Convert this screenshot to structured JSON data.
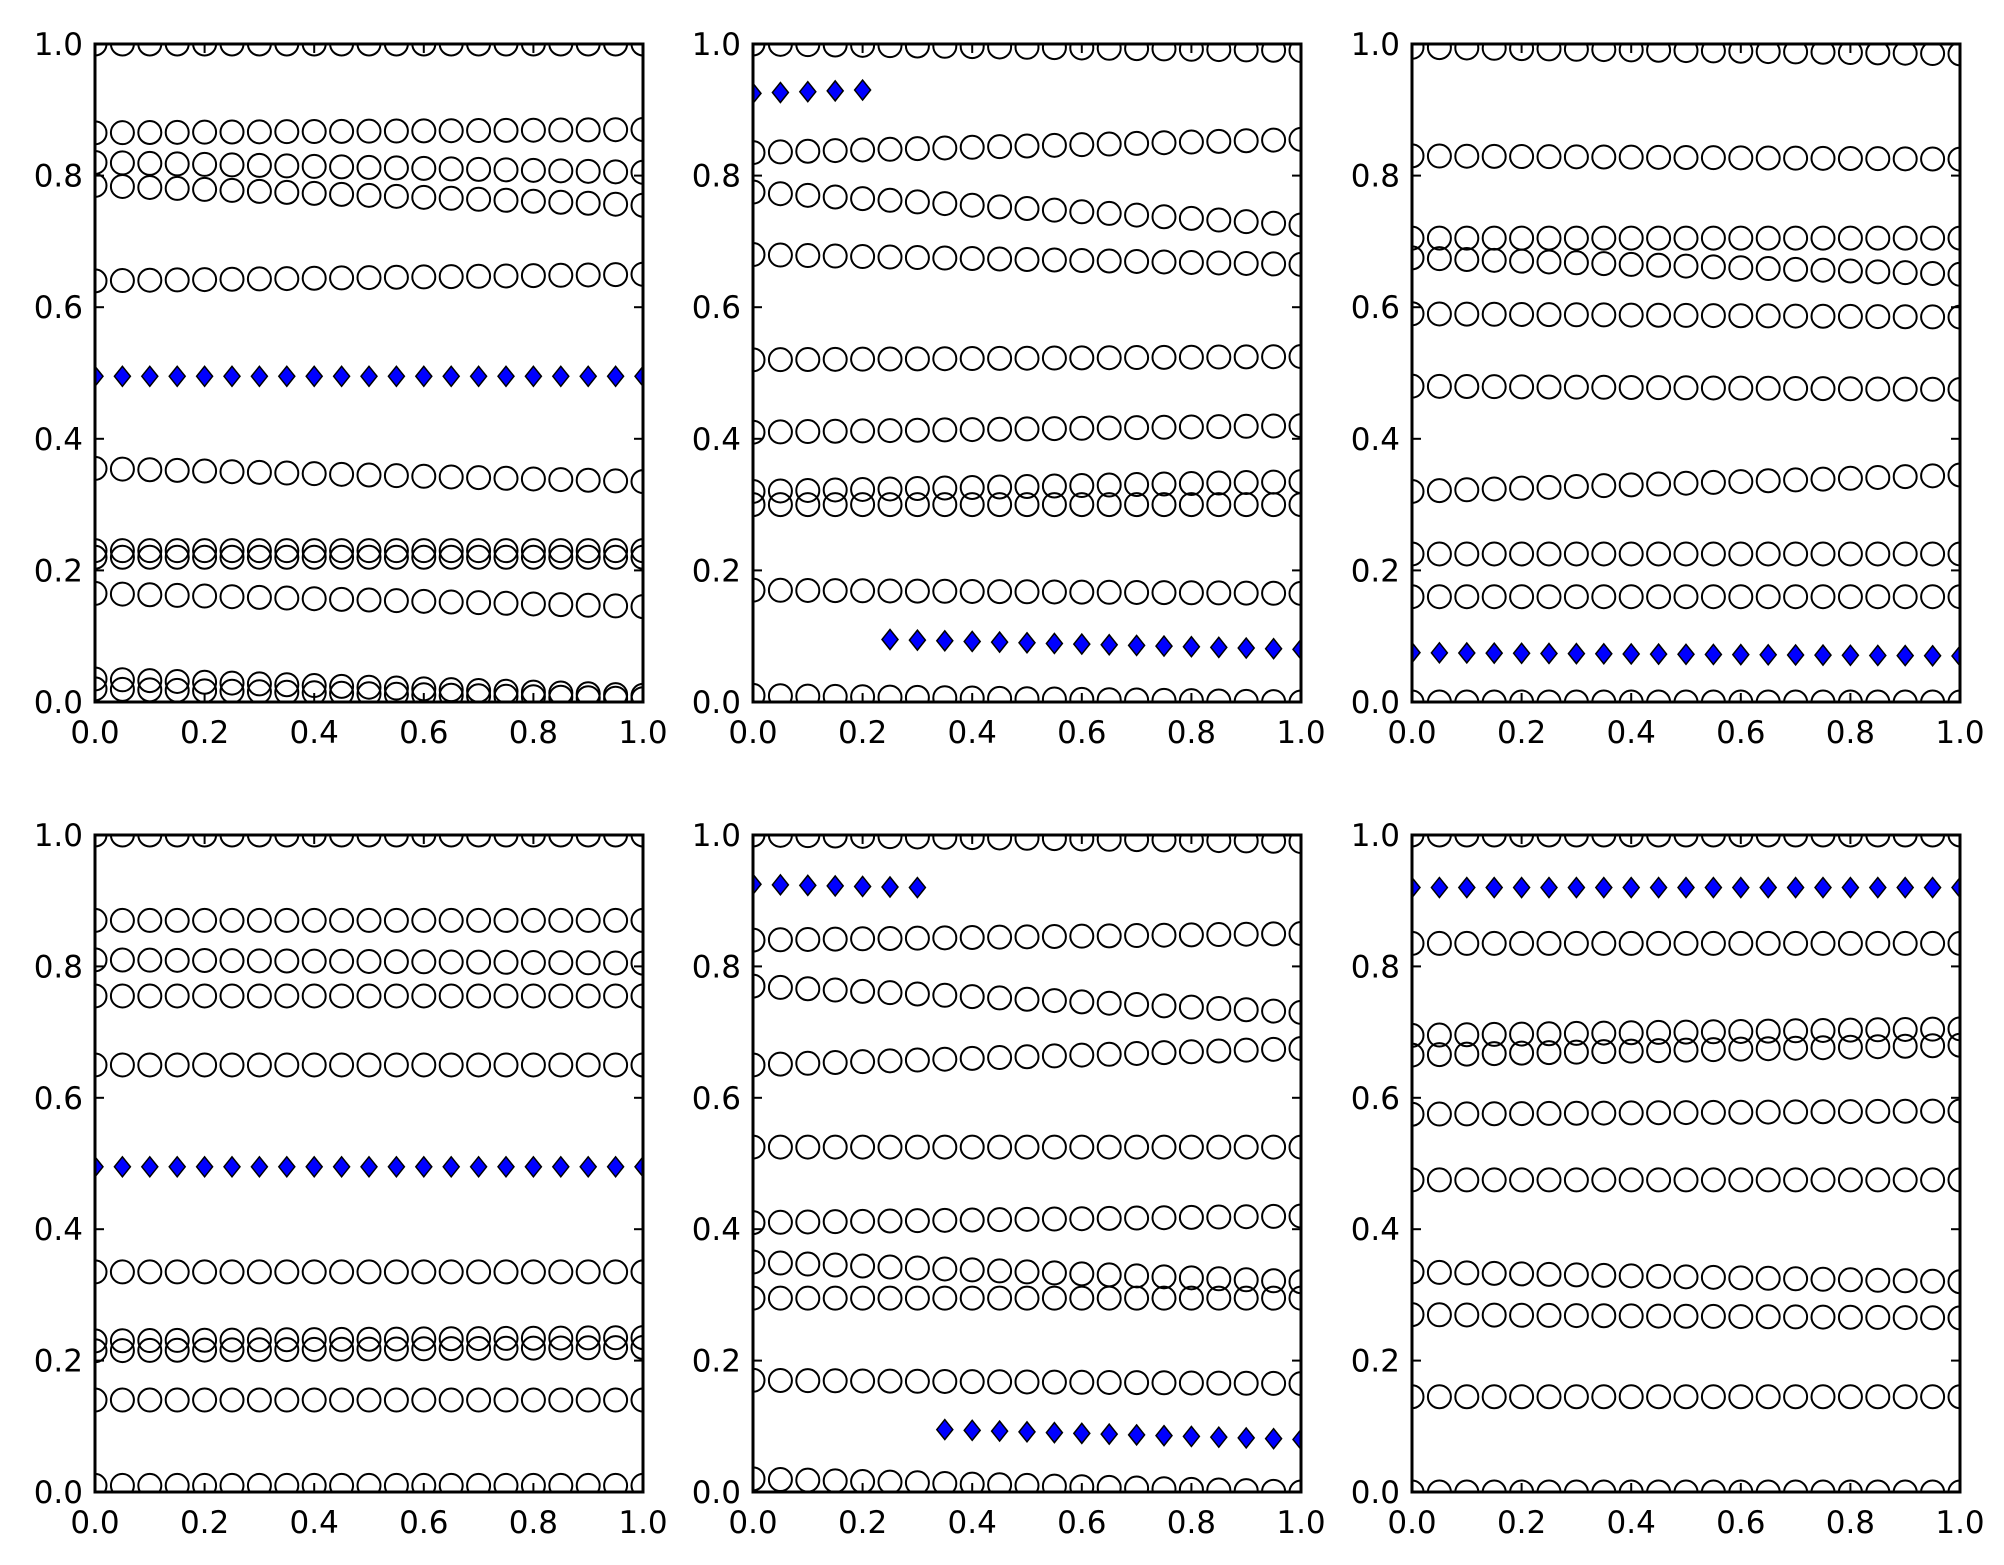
{
  "figure": {
    "grid": "2x3",
    "diamond_color": "#0000ff",
    "circle_edge_color": "#000000",
    "marker_styles": {
      "circles": "open circle",
      "highlighted": "filled blue diamond"
    }
  },
  "chart_data": [
    {
      "type": "scatter",
      "title": "",
      "xlabel": "",
      "ylabel": "",
      "xlim": [
        0,
        1
      ],
      "ylim": [
        0,
        1
      ],
      "x_ticks": [
        "0.0",
        "0.2",
        "0.4",
        "0.6",
        "0.8",
        "1.0"
      ],
      "y_ticks": [
        "0.0",
        "0.2",
        "0.4",
        "0.6",
        "0.8",
        "1.0"
      ],
      "grid": false,
      "x_values": [
        0.0,
        0.05,
        0.1,
        0.15,
        0.2,
        0.25,
        0.3,
        0.35,
        0.4,
        0.45,
        0.5,
        0.55,
        0.6,
        0.65,
        0.7,
        0.75,
        0.8,
        0.85,
        0.9,
        0.95,
        1.0
      ],
      "circle_tracks": [
        {
          "start": 1.0,
          "end": 1.0
        },
        {
          "start": 0.865,
          "end": 0.87
        },
        {
          "start": 0.82,
          "end": 0.805
        },
        {
          "start": 0.785,
          "end": 0.755
        },
        {
          "start": 0.64,
          "end": 0.65
        },
        {
          "start": 0.355,
          "end": 0.335
        },
        {
          "start": 0.23,
          "end": 0.23
        },
        {
          "start": 0.22,
          "end": 0.22
        },
        {
          "start": 0.165,
          "end": 0.145
        },
        {
          "start": 0.035,
          "end": 0.01
        },
        {
          "start": 0.02,
          "end": 0.005
        }
      ],
      "diamond_series": {
        "x_from": 0.0,
        "x_to": 1.0,
        "y_start": 0.495,
        "y_end": 0.495
      }
    },
    {
      "type": "scatter",
      "title": "",
      "xlabel": "",
      "ylabel": "",
      "xlim": [
        0,
        1
      ],
      "ylim": [
        0,
        1
      ],
      "x_ticks": [
        "0.0",
        "0.2",
        "0.4",
        "0.6",
        "0.8",
        "1.0"
      ],
      "y_ticks": [
        "0.0",
        "0.2",
        "0.4",
        "0.6",
        "0.8",
        "1.0"
      ],
      "grid": false,
      "x_values": [
        0.0,
        0.05,
        0.1,
        0.15,
        0.2,
        0.25,
        0.3,
        0.35,
        0.4,
        0.45,
        0.5,
        0.55,
        0.6,
        0.65,
        0.7,
        0.75,
        0.8,
        0.85,
        0.9,
        0.95,
        1.0
      ],
      "circle_tracks": [
        {
          "start": 1.0,
          "end": 0.99
        },
        {
          "start": 0.835,
          "end": 0.855
        },
        {
          "start": 0.775,
          "end": 0.725
        },
        {
          "start": 0.68,
          "end": 0.665
        },
        {
          "start": 0.52,
          "end": 0.525
        },
        {
          "start": 0.41,
          "end": 0.42
        },
        {
          "start": 0.32,
          "end": 0.335
        },
        {
          "start": 0.3,
          "end": 0.3
        },
        {
          "start": 0.17,
          "end": 0.165
        },
        {
          "start": 0.01,
          "end": 0.0
        }
      ],
      "diamond_series": [
        {
          "x_from": 0.0,
          "x_to": 0.2,
          "y_start": 0.925,
          "y_end": 0.93
        },
        {
          "x_from": 0.25,
          "x_to": 1.0,
          "y_start": 0.095,
          "y_end": 0.08
        }
      ]
    },
    {
      "type": "scatter",
      "title": "",
      "xlabel": "",
      "ylabel": "",
      "xlim": [
        0,
        1
      ],
      "ylim": [
        0,
        1
      ],
      "x_ticks": [
        "0.0",
        "0.2",
        "0.4",
        "0.6",
        "0.8",
        "1.0"
      ],
      "y_ticks": [
        "0.0",
        "0.2",
        "0.4",
        "0.6",
        "0.8",
        "1.0"
      ],
      "grid": false,
      "x_values": [
        0.0,
        0.05,
        0.1,
        0.15,
        0.2,
        0.25,
        0.3,
        0.35,
        0.4,
        0.45,
        0.5,
        0.55,
        0.6,
        0.65,
        0.7,
        0.75,
        0.8,
        0.85,
        0.9,
        0.95,
        1.0
      ],
      "circle_tracks": [
        {
          "start": 0.995,
          "end": 0.985
        },
        {
          "start": 0.83,
          "end": 0.825
        },
        {
          "start": 0.705,
          "end": 0.705
        },
        {
          "start": 0.675,
          "end": 0.65
        },
        {
          "start": 0.59,
          "end": 0.585
        },
        {
          "start": 0.48,
          "end": 0.475
        },
        {
          "start": 0.32,
          "end": 0.345
        },
        {
          "start": 0.225,
          "end": 0.225
        },
        {
          "start": 0.16,
          "end": 0.16
        },
        {
          "start": 0.0,
          "end": 0.0
        }
      ],
      "diamond_series": {
        "x_from": 0.0,
        "x_to": 1.0,
        "y_start": 0.075,
        "y_end": 0.07
      }
    },
    {
      "type": "scatter",
      "title": "",
      "xlabel": "",
      "ylabel": "",
      "xlim": [
        0,
        1
      ],
      "ylim": [
        0,
        1
      ],
      "x_ticks": [
        "0.0",
        "0.2",
        "0.4",
        "0.6",
        "0.8",
        "1.0"
      ],
      "y_ticks": [
        "0.0",
        "0.2",
        "0.4",
        "0.6",
        "0.8",
        "1.0"
      ],
      "grid": false,
      "x_values": [
        0.0,
        0.05,
        0.1,
        0.15,
        0.2,
        0.25,
        0.3,
        0.35,
        0.4,
        0.45,
        0.5,
        0.55,
        0.6,
        0.65,
        0.7,
        0.75,
        0.8,
        0.85,
        0.9,
        0.95,
        1.0
      ],
      "circle_tracks": [
        {
          "start": 1.0,
          "end": 1.0
        },
        {
          "start": 0.87,
          "end": 0.87
        },
        {
          "start": 0.81,
          "end": 0.805
        },
        {
          "start": 0.755,
          "end": 0.755
        },
        {
          "start": 0.65,
          "end": 0.65
        },
        {
          "start": 0.335,
          "end": 0.335
        },
        {
          "start": 0.23,
          "end": 0.235
        },
        {
          "start": 0.215,
          "end": 0.22
        },
        {
          "start": 0.14,
          "end": 0.14
        },
        {
          "start": 0.01,
          "end": 0.01
        }
      ],
      "diamond_series": {
        "x_from": 0.0,
        "x_to": 1.0,
        "y_start": 0.495,
        "y_end": 0.495
      }
    },
    {
      "type": "scatter",
      "title": "",
      "xlabel": "",
      "ylabel": "",
      "xlim": [
        0,
        1
      ],
      "ylim": [
        0,
        1
      ],
      "x_ticks": [
        "0.0",
        "0.2",
        "0.4",
        "0.6",
        "0.8",
        "1.0"
      ],
      "y_ticks": [
        "0.0",
        "0.2",
        "0.4",
        "0.6",
        "0.8",
        "1.0"
      ],
      "grid": false,
      "x_values": [
        0.0,
        0.05,
        0.1,
        0.15,
        0.2,
        0.25,
        0.3,
        0.35,
        0.4,
        0.45,
        0.5,
        0.55,
        0.6,
        0.65,
        0.7,
        0.75,
        0.8,
        0.85,
        0.9,
        0.95,
        1.0
      ],
      "circle_tracks": [
        {
          "start": 1.0,
          "end": 0.99
        },
        {
          "start": 0.84,
          "end": 0.85
        },
        {
          "start": 0.77,
          "end": 0.73
        },
        {
          "start": 0.65,
          "end": 0.675
        },
        {
          "start": 0.525,
          "end": 0.525
        },
        {
          "start": 0.41,
          "end": 0.42
        },
        {
          "start": 0.35,
          "end": 0.32
        },
        {
          "start": 0.295,
          "end": 0.295
        },
        {
          "start": 0.17,
          "end": 0.165
        },
        {
          "start": 0.02,
          "end": 0.0
        }
      ],
      "diamond_series": [
        {
          "x_from": 0.0,
          "x_to": 0.3,
          "y_start": 0.925,
          "y_end": 0.92
        },
        {
          "x_from": 0.35,
          "x_to": 1.0,
          "y_start": 0.095,
          "y_end": 0.08
        }
      ]
    },
    {
      "type": "scatter",
      "title": "",
      "xlabel": "",
      "ylabel": "",
      "xlim": [
        0,
        1
      ],
      "ylim": [
        0,
        1
      ],
      "x_ticks": [
        "0.0",
        "0.2",
        "0.4",
        "0.6",
        "0.8",
        "1.0"
      ],
      "y_ticks": [
        "0.0",
        "0.2",
        "0.4",
        "0.6",
        "0.8",
        "1.0"
      ],
      "grid": false,
      "x_values": [
        0.0,
        0.05,
        0.1,
        0.15,
        0.2,
        0.25,
        0.3,
        0.35,
        0.4,
        0.45,
        0.5,
        0.55,
        0.6,
        0.65,
        0.7,
        0.75,
        0.8,
        0.85,
        0.9,
        0.95,
        1.0
      ],
      "circle_tracks": [
        {
          "start": 1.0,
          "end": 1.0
        },
        {
          "start": 0.835,
          "end": 0.835
        },
        {
          "start": 0.695,
          "end": 0.705
        },
        {
          "start": 0.665,
          "end": 0.68
        },
        {
          "start": 0.575,
          "end": 0.58
        },
        {
          "start": 0.475,
          "end": 0.475
        },
        {
          "start": 0.335,
          "end": 0.32
        },
        {
          "start": 0.27,
          "end": 0.265
        },
        {
          "start": 0.145,
          "end": 0.145
        },
        {
          "start": 0.0,
          "end": 0.0
        }
      ],
      "diamond_series": {
        "x_from": 0.0,
        "x_to": 1.0,
        "y_start": 0.92,
        "y_end": 0.92
      }
    }
  ]
}
